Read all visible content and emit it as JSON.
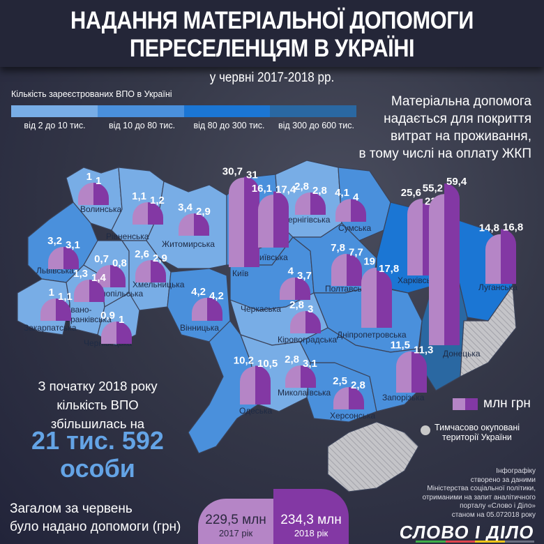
{
  "header": {
    "title_line1": "НАДАННЯ МАТЕРІАЛЬНОЇ ДОПОМОГИ",
    "title_line2": "ПЕРЕСЕЛЕНЦЯМ В УКРАЇНІ",
    "subtitle": "у червні  2017-2018 рр."
  },
  "legend": {
    "title": "Кількість зареєстрованих ВПО в Україні",
    "bins": [
      {
        "label": "від 2 до 10 тис.",
        "color": "#78ade6"
      },
      {
        "label": "від 10 до 80 тис.",
        "color": "#4a90dc"
      },
      {
        "label": "від 80 до 300 тис.",
        "color": "#1b76d4"
      },
      {
        "label": "від 300 до 600 тис.",
        "color": "#2a68a2"
      }
    ],
    "unit_label": "млн грн",
    "color_2017": "#b585c6",
    "color_2018": "#8338a4",
    "occupied_label_line1": "Тимчасово окуповані",
    "occupied_label_line2": "території України",
    "occupied_color": "#c8c8c8"
  },
  "note": {
    "line1": "Матеріальна допомога",
    "line2": "надається для покриття",
    "line3": "витрат на проживання,",
    "line4": "в тому числі на оплату ЖКП"
  },
  "highlight": {
    "line1": "З початку 2018 року",
    "line2": "кількість ВПО",
    "line3": "збільшилась на",
    "number_line1": "21 тис. 592",
    "number_line2": "особи"
  },
  "totals": {
    "label_line1": "Загалом за червень",
    "label_line2": "було надано допомоги (грн)",
    "y2017": {
      "amount": "229,5 млн",
      "year": "2017 рік"
    },
    "y2018": {
      "amount": "234,3 млн",
      "year": "2018 рік"
    }
  },
  "credit": {
    "line1": "Інфографіку",
    "line2": "створено за даними",
    "line3": "Міністерства соціальної політики,",
    "line4": "отриманими на запит аналітичного",
    "line5": "порталу «Слово і Діло»",
    "line6": "станом на 05.072018 року",
    "logo": "СЛОВО І ДІЛО"
  },
  "chart_data": {
    "type": "bar",
    "title": "Надання матеріальної допомоги переселенцям в Україні у червні 2017-2018 рр.",
    "ylabel": "млн грн",
    "categories": [
      "Волинська",
      "Рівненська",
      "Житомирська",
      "Київ",
      "Київська",
      "Чернігівська",
      "Сумська",
      "Львівська",
      "Хмельницька",
      "Тернопільська",
      "Івано-Франківська",
      "Закарпатська",
      "Чернівецька",
      "Вінницька",
      "Черкаська",
      "Полтавська",
      "Дніпропетровська",
      "Харківська",
      "Донецька",
      "Луганська",
      "Кіровоградська",
      "Одеська",
      "Миколаївська",
      "Херсонська",
      "Запорізька"
    ],
    "series": [
      {
        "name": "2017",
        "values": [
          1,
          1.1,
          3.4,
          30.7,
          16.1,
          2.8,
          4.1,
          3.2,
          2.6,
          0.7,
          1.3,
          1,
          0.9,
          4.2,
          4,
          7.8,
          19,
          25.6,
          55.2,
          14.8,
          2.8,
          10.2,
          2.8,
          2.5,
          11.5
        ]
      },
      {
        "name": "2018",
        "values": [
          1,
          1.2,
          2.9,
          31,
          17.4,
          2.8,
          4,
          3.1,
          2.9,
          0.8,
          1.4,
          1.1,
          1,
          4.2,
          3.7,
          7.7,
          17.8,
          23.7,
          59.4,
          16.8,
          3,
          10.5,
          3.1,
          2.8,
          11.3
        ]
      }
    ],
    "value_labels_2017": [
      "1",
      "1,1",
      "3,4",
      "30,7",
      "16,1",
      "2,8",
      "4,1",
      "3,2",
      "2,6",
      "0,7",
      "1,3",
      "1",
      "0,9",
      "4,2",
      "4",
      "7,8",
      "19",
      "25,6",
      "55,2",
      "14,8",
      "2,8",
      "10,2",
      "2,8",
      "2,5",
      "11,5"
    ],
    "value_labels_2018": [
      "1",
      "1,2",
      "2,9",
      "31",
      "17,4",
      "2,8",
      "4",
      "3,1",
      "2,9",
      "0,8",
      "1,4",
      "1,1",
      "1",
      "4,2",
      "3,7",
      "7,7",
      "17,8",
      "23,7",
      "59,4",
      "16,8",
      "3",
      "10,5",
      "3,1",
      "2,8",
      "11,3"
    ],
    "totals": {
      "2017": 229.5,
      "2018": 234.3
    },
    "idp_increase_2018": "21 тис. 592 особи"
  }
}
